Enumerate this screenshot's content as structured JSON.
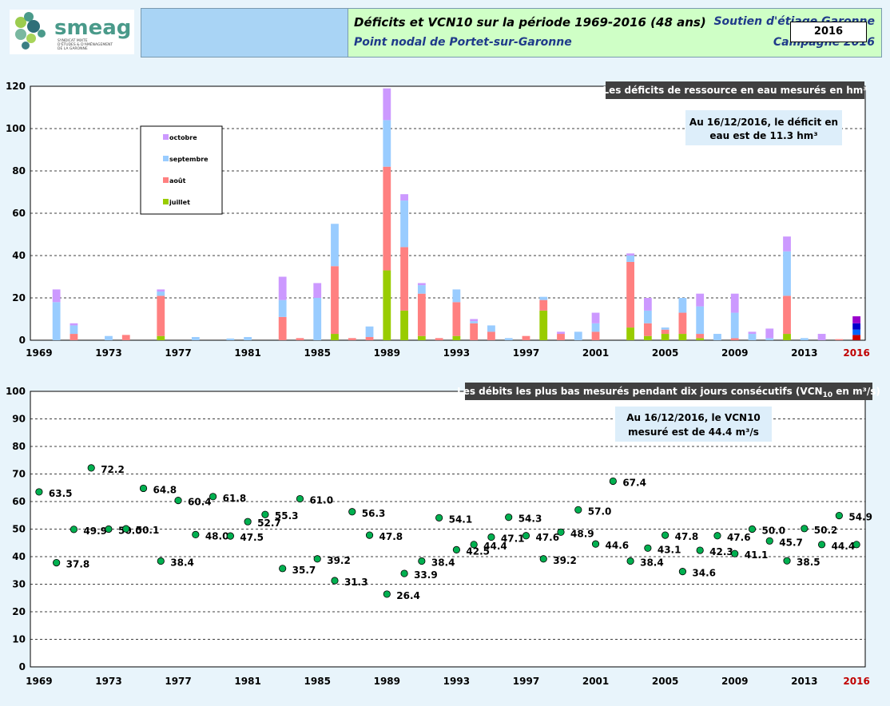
{
  "header": {
    "logo_name": "smeag",
    "logo_sub1": "SYNDICAT MIXTE",
    "logo_sub2": "D'ÉTUDES & D'AMÉNAGEMENT",
    "logo_sub3": "DE LA GARONNE",
    "title_left_1": "Soutien d'étiage Garonne",
    "title_left_2": "Campagne 2016",
    "title_right_1": "Déficits et VCN10 sur la période 1969-2016 (48 ans)",
    "title_right_2": "Point nodal de Portet-sur-Garonne",
    "year_box": "2016"
  },
  "colors": {
    "juillet": "#99cc00",
    "aout": "#ff8080",
    "septembre": "#99ccff",
    "octobre": "#cc99ff",
    "last_juillet": "#cc0000",
    "last_aout": "#0066ff",
    "last_septembre": "#0000cc",
    "last_octobre": "#9900cc",
    "point": "#00b050",
    "highlight_year": "#c00000"
  },
  "chart_data": [
    {
      "type": "bar",
      "stacked": true,
      "title": "Les déficits de ressource  en eau mesurés en hm³",
      "note_1": "Au 16/12/2016, le déficit en",
      "note_2": "eau est de 11.3 hm³",
      "ylim": [
        0,
        120
      ],
      "yticks": [
        0,
        20,
        40,
        60,
        80,
        100,
        120
      ],
      "grid": true,
      "legend_position": "top-left",
      "legend_order": [
        "octobre",
        "septembre",
        "août",
        "juillet"
      ],
      "x_tick_labels": [
        "1969",
        "1973",
        "1977",
        "1981",
        "1985",
        "1989",
        "1993",
        "1997",
        "2001",
        "2005",
        "2009",
        "2013",
        "2016"
      ],
      "categories": [
        1969,
        1970,
        1971,
        1972,
        1973,
        1974,
        1975,
        1976,
        1977,
        1978,
        1979,
        1980,
        1981,
        1982,
        1983,
        1984,
        1985,
        1986,
        1987,
        1988,
        1989,
        1990,
        1991,
        1992,
        1993,
        1994,
        1995,
        1996,
        1997,
        1998,
        1999,
        2000,
        2001,
        2002,
        2003,
        2004,
        2005,
        2006,
        2007,
        2008,
        2009,
        2010,
        2011,
        2012,
        2013,
        2014,
        2015,
        2016
      ],
      "series": [
        {
          "name": "juillet",
          "values": [
            0,
            0,
            0,
            0,
            0,
            0,
            0,
            2,
            0,
            0,
            0,
            0,
            0,
            0,
            0,
            0,
            0,
            3,
            0,
            0,
            33,
            14,
            2,
            0,
            2,
            0,
            0,
            0,
            0,
            14,
            0,
            0,
            0,
            0,
            6,
            2,
            3,
            3,
            1,
            0,
            0,
            0,
            0,
            3,
            0,
            0,
            0,
            2.5
          ]
        },
        {
          "name": "août",
          "values": [
            0,
            0,
            3,
            0,
            0,
            2.5,
            0,
            19,
            0,
            0,
            0,
            0,
            0,
            0,
            11,
            1,
            0,
            32,
            1,
            1.5,
            49,
            30,
            20,
            1,
            16,
            8,
            4,
            0,
            2,
            5,
            3,
            0,
            4,
            0,
            31,
            6,
            2,
            10,
            2,
            0,
            1,
            0,
            0,
            18,
            0,
            0,
            0.5,
            2.5
          ]
        },
        {
          "name": "septembre",
          "values": [
            0,
            18,
            4,
            0,
            2,
            0,
            0,
            2,
            0,
            1.5,
            0,
            0.8,
            1.5,
            0,
            8,
            0,
            20,
            20,
            0,
            5,
            22,
            22,
            4,
            0,
            6,
            1,
            3,
            1,
            0,
            1.5,
            0,
            4,
            4,
            0,
            3,
            6,
            1,
            7,
            13,
            3,
            12,
            3,
            1,
            21,
            1,
            0,
            0,
            3
          ]
        },
        {
          "name": "octobre",
          "values": [
            0,
            6,
            1,
            0,
            0,
            0,
            0,
            1,
            0,
            0,
            0,
            0,
            0,
            0,
            11,
            0,
            7,
            0,
            0,
            0,
            15,
            3,
            1,
            0,
            0,
            1,
            0,
            0,
            0,
            0,
            1,
            0,
            5,
            0,
            1,
            6,
            0,
            0,
            6,
            0,
            9,
            1,
            4.5,
            7,
            0,
            3,
            0,
            3.3
          ]
        }
      ]
    },
    {
      "type": "scatter",
      "title_prefix": "Les débits les plus bas mesurés pendant dix jours consécutifs  (VCN",
      "title_sub": "10",
      "title_suffix": " en m³/s)",
      "note_1": "Au 16/12/2016, le VCN10",
      "note_2": "mesuré est de 44.4 m³/s",
      "ylim": [
        0,
        100
      ],
      "yticks": [
        0,
        10,
        20,
        30,
        40,
        50,
        60,
        70,
        80,
        90,
        100
      ],
      "grid": true,
      "x_tick_labels": [
        "1969",
        "1973",
        "1977",
        "1981",
        "1985",
        "1989",
        "1993",
        "1997",
        "2001",
        "2005",
        "2009",
        "2013",
        "2016"
      ],
      "x": [
        1969,
        1970,
        1971,
        1972,
        1973,
        1974,
        1975,
        1976,
        1977,
        1978,
        1979,
        1980,
        1981,
        1982,
        1983,
        1984,
        1985,
        1986,
        1987,
        1988,
        1989,
        1990,
        1991,
        1992,
        1993,
        1994,
        1995,
        1996,
        1997,
        1998,
        1999,
        2000,
        2001,
        2002,
        2003,
        2004,
        2005,
        2006,
        2007,
        2008,
        2009,
        2010,
        2011,
        2012,
        2013,
        2014,
        2015,
        2016
      ],
      "y": [
        63.5,
        37.8,
        49.9,
        72.2,
        50.0,
        50.1,
        64.8,
        38.4,
        60.4,
        48.0,
        61.8,
        47.5,
        52.7,
        55.3,
        35.7,
        61.0,
        39.2,
        31.3,
        56.3,
        47.8,
        26.4,
        33.9,
        38.4,
        54.1,
        42.5,
        44.4,
        47.1,
        54.3,
        47.6,
        39.2,
        48.9,
        57.0,
        44.6,
        67.4,
        38.4,
        43.1,
        47.8,
        34.6,
        42.3,
        47.6,
        41.1,
        50.0,
        45.7,
        38.5,
        50.2,
        44.4,
        54.9,
        44.4
      ],
      "labels": [
        "63.5",
        "37.8",
        "49.9",
        "72.2",
        "50.0",
        "50.1",
        "64.8",
        "38.4",
        "60.4",
        "48.0",
        "61.8",
        "47.5",
        "52.7",
        "55.3",
        "35.7",
        "61.0",
        "39.2",
        "31.3",
        "56.3",
        "47.8",
        "26.4",
        "33.9",
        "38.4",
        "54.1",
        "42.5",
        "44.4",
        "47.1",
        "54.3",
        "47.6",
        "39.2",
        "48.9",
        "57.0",
        "44.6",
        "67.4",
        "38.4",
        "43.1",
        "47.8",
        "34.6",
        "42.3",
        "47.6",
        "41.1",
        "50.0",
        "45.7",
        "38.5",
        "50.2",
        "44.4",
        "54.9",
        ""
      ]
    }
  ]
}
